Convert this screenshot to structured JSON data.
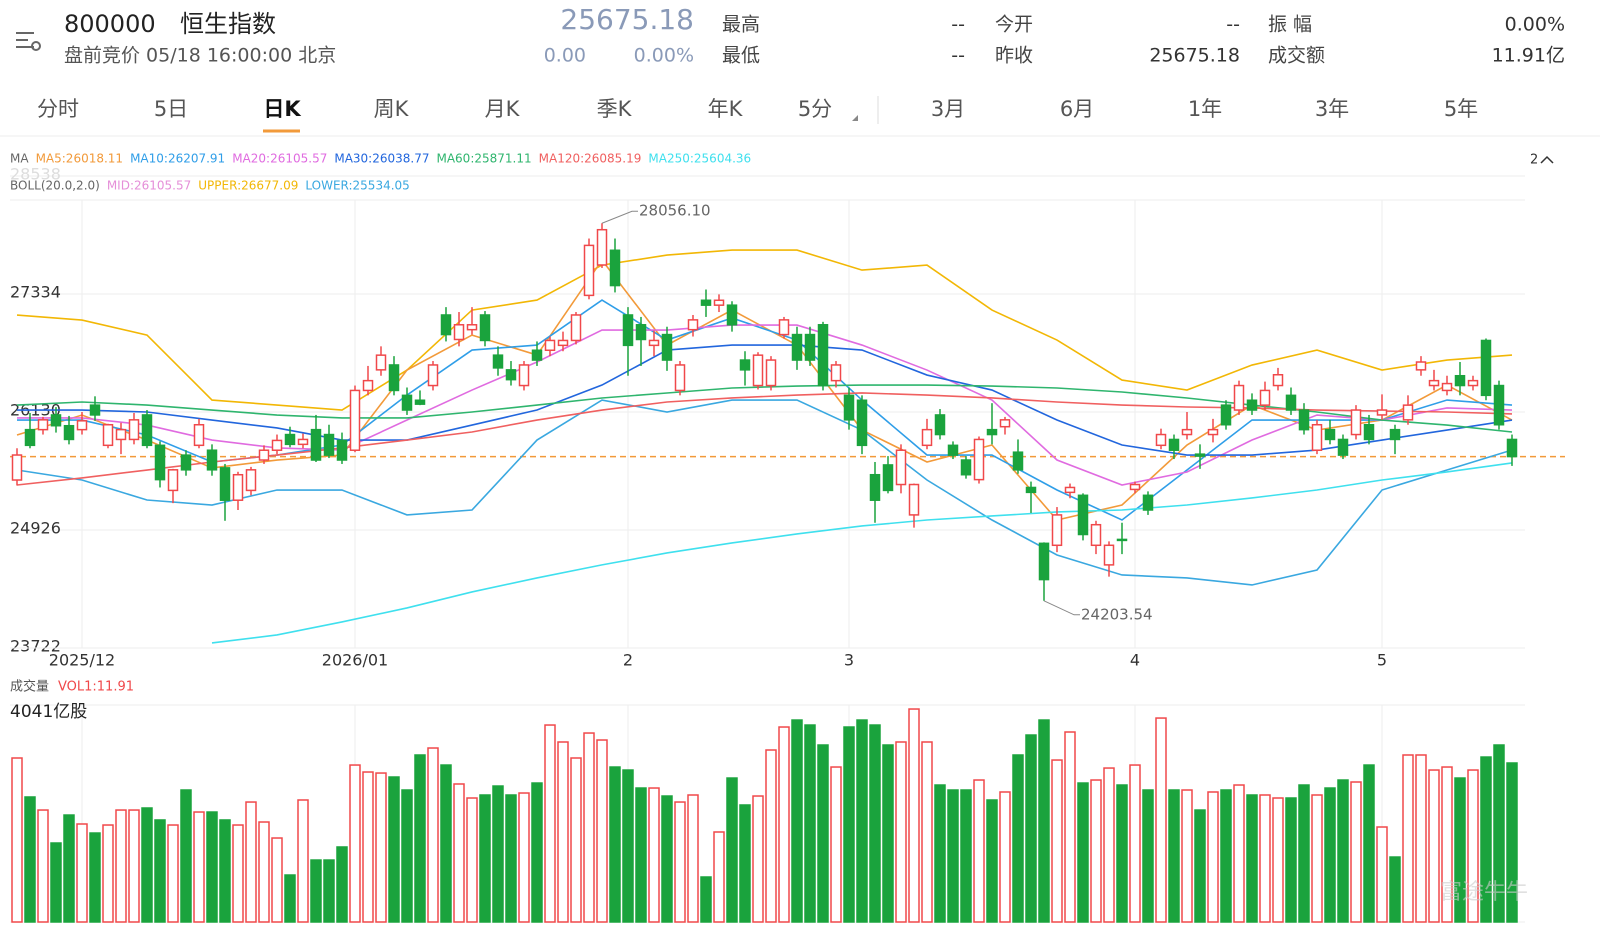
{
  "header": {
    "code": "800000",
    "name": "恒生指数",
    "status": "盘前竞价 05/18 16:00:00 北京",
    "price": "25675.18",
    "change": "0.00",
    "change_pct": "0.00%",
    "stats": [
      [
        "最高",
        "--"
      ],
      [
        "最低",
        "--"
      ],
      [
        "今开",
        "--"
      ],
      [
        "昨收",
        "25675.18"
      ],
      [
        "振 幅",
        "0.00%"
      ],
      [
        "成交额",
        "11.91亿"
      ]
    ]
  },
  "tabs": [
    "分时",
    "5日",
    "日K",
    "周K",
    "月K",
    "季K",
    "年K",
    "5分",
    "3月",
    "6月",
    "1年",
    "3年",
    "5年"
  ],
  "watermark": "富途牛牛",
  "chart_data": {
    "type": "candlestick",
    "ma_title": "MA",
    "boll_title": "BOLL(20.0,2.0)",
    "legend_toggle": "2",
    "ylim": [
      23722,
      28538
    ],
    "yticks": [
      23722,
      24926,
      26130,
      27334,
      28538
    ],
    "xticks": [
      {
        "value": 5,
        "label": "2025/12"
      },
      {
        "value": 26,
        "label": "2026/01"
      },
      {
        "value": 47,
        "label": "2"
      },
      {
        "value": 64,
        "label": "3"
      },
      {
        "value": 86,
        "label": "4"
      },
      {
        "value": 105,
        "label": "5"
      }
    ],
    "up_color": "#f0484a",
    "down_color": "#1aa33d",
    "last_price": 25675.18,
    "last_color": "#f29a3a",
    "high_label": "28056.10",
    "low_label": "24203.54",
    "candles": [
      [
        25436,
        25760,
        25380,
        25691
      ],
      [
        25950,
        26120,
        25760,
        25790
      ],
      [
        25950,
        26080,
        25900,
        26050
      ],
      [
        26100,
        26180,
        25920,
        25990
      ],
      [
        25990,
        26090,
        25800,
        25850
      ],
      [
        25950,
        26130,
        25900,
        26040
      ],
      [
        26200,
        26290,
        26040,
        26100
      ],
      [
        25790,
        26010,
        25760,
        26000
      ],
      [
        25850,
        26020,
        25700,
        25950
      ],
      [
        25850,
        26120,
        25800,
        26050
      ],
      [
        26100,
        26150,
        25760,
        25790
      ],
      [
        25790,
        25830,
        25360,
        25440
      ],
      [
        25330,
        25550,
        25200,
        25540
      ],
      [
        25690,
        25740,
        25480,
        25540
      ],
      [
        25790,
        26060,
        25760,
        26000
      ],
      [
        25740,
        25800,
        25480,
        25540
      ],
      [
        25560,
        25600,
        25020,
        25230
      ],
      [
        25230,
        25520,
        25130,
        25490
      ],
      [
        25330,
        25570,
        25280,
        25540
      ],
      [
        25640,
        25790,
        25600,
        25740
      ],
      [
        25740,
        25900,
        25700,
        25840
      ],
      [
        25900,
        25980,
        25770,
        25800
      ],
      [
        25800,
        25910,
        25760,
        25850
      ],
      [
        25950,
        26100,
        25620,
        25640
      ],
      [
        25900,
        26000,
        25660,
        25690
      ],
      [
        25840,
        25920,
        25600,
        25640
      ],
      [
        25740,
        26400,
        25720,
        26350
      ],
      [
        26350,
        26600,
        26300,
        26450
      ],
      [
        26560,
        26800,
        26500,
        26710
      ],
      [
        26610,
        26700,
        26300,
        26350
      ],
      [
        26300,
        26380,
        26100,
        26150
      ],
      [
        26250,
        26350,
        26200,
        26210
      ],
      [
        26400,
        26650,
        26350,
        26610
      ],
      [
        27120,
        27200,
        26850,
        26920
      ],
      [
        26870,
        27150,
        26800,
        27020
      ],
      [
        26970,
        27200,
        26920,
        27020
      ],
      [
        27120,
        27160,
        26800,
        26860
      ],
      [
        26710,
        26800,
        26500,
        26580
      ],
      [
        26560,
        26650,
        26400,
        26460
      ],
      [
        26400,
        26650,
        26350,
        26610
      ],
      [
        26760,
        26850,
        26600,
        26660
      ],
      [
        26760,
        26900,
        26700,
        26860
      ],
      [
        26810,
        26950,
        26750,
        26860
      ],
      [
        26860,
        27150,
        26820,
        27120
      ],
      [
        27320,
        27900,
        27280,
        27830
      ],
      [
        27630,
        28056.1,
        27600,
        27990
      ],
      [
        27780,
        27900,
        27350,
        27420
      ],
      [
        27120,
        27200,
        26500,
        26810
      ],
      [
        27020,
        27100,
        26600,
        26870
      ],
      [
        26810,
        26960,
        26700,
        26860
      ],
      [
        26920,
        27000,
        26550,
        26660
      ],
      [
        26350,
        26650,
        26300,
        26610
      ],
      [
        26970,
        27120,
        26900,
        27070
      ],
      [
        27270,
        27380,
        27100,
        27220
      ],
      [
        27220,
        27330,
        27150,
        27270
      ],
      [
        27220,
        27260,
        26950,
        27020
      ],
      [
        26660,
        26750,
        26400,
        26560
      ],
      [
        26400,
        26740,
        26360,
        26710
      ],
      [
        26400,
        26700,
        26350,
        26660
      ],
      [
        26920,
        27100,
        26880,
        27070
      ],
      [
        26920,
        27000,
        26560,
        26660
      ],
      [
        26920,
        27000,
        26600,
        26660
      ],
      [
        27020,
        27050,
        26350,
        26400
      ],
      [
        26450,
        26650,
        26380,
        26610
      ],
      [
        26300,
        26380,
        25950,
        26050
      ],
      [
        26250,
        26300,
        25700,
        25790
      ],
      [
        25490,
        25620,
        25000,
        25230
      ],
      [
        25590,
        25680,
        25300,
        25330
      ],
      [
        25390,
        25800,
        25300,
        25740
      ],
      [
        25080,
        25400,
        24950,
        25390
      ],
      [
        25790,
        26060,
        25750,
        25950
      ],
      [
        26100,
        26160,
        25850,
        25900
      ],
      [
        25790,
        25830,
        25650,
        25690
      ],
      [
        25640,
        25680,
        25450,
        25490
      ],
      [
        25440,
        25880,
        25400,
        25850
      ],
      [
        25950,
        26220,
        25800,
        25900
      ],
      [
        25980,
        26080,
        25900,
        26050
      ],
      [
        25720,
        25850,
        25500,
        25540
      ],
      [
        25360,
        25420,
        25100,
        25310
      ],
      [
        24790,
        24800,
        24203.54,
        24420
      ],
      [
        24770,
        25160,
        24700,
        25080
      ],
      [
        25310,
        25400,
        25250,
        25360
      ],
      [
        25280,
        25300,
        24820,
        24880
      ],
      [
        24770,
        25020,
        24680,
        24980
      ],
      [
        24570,
        24810,
        24450,
        24770
      ],
      [
        24830,
        25000,
        24680,
        24820
      ],
      [
        25340,
        25420,
        25300,
        25390
      ],
      [
        25280,
        25320,
        25080,
        25130
      ],
      [
        25790,
        25960,
        25750,
        25900
      ],
      [
        25850,
        25900,
        25650,
        25740
      ],
      [
        25900,
        26130,
        25850,
        25950
      ],
      [
        25700,
        25800,
        25550,
        25680
      ],
      [
        25900,
        26060,
        25820,
        25950
      ],
      [
        26200,
        26250,
        25950,
        26000
      ],
      [
        26150,
        26450,
        26100,
        26400
      ],
      [
        26250,
        26320,
        26100,
        26150
      ],
      [
        26200,
        26440,
        26150,
        26350
      ],
      [
        26400,
        26580,
        26350,
        26510
      ],
      [
        26300,
        26380,
        26100,
        26150
      ],
      [
        26150,
        26220,
        25900,
        25950
      ],
      [
        25740,
        26050,
        25700,
        26000
      ],
      [
        25950,
        26050,
        25800,
        25850
      ],
      [
        25850,
        25900,
        25650,
        25690
      ],
      [
        25900,
        26200,
        25850,
        26150
      ],
      [
        26000,
        26100,
        25800,
        25850
      ],
      [
        26100,
        26310,
        26050,
        26150
      ],
      [
        25950,
        26000,
        25700,
        25850
      ],
      [
        26050,
        26300,
        26000,
        26200
      ],
      [
        26560,
        26700,
        26500,
        26640
      ],
      [
        26400,
        26560,
        26350,
        26450
      ],
      [
        26350,
        26500,
        26300,
        26420
      ],
      [
        26500,
        26640,
        26300,
        26400
      ],
      [
        26400,
        26500,
        26350,
        26450
      ],
      [
        26860,
        26880,
        26250,
        26300
      ],
      [
        26400,
        26450,
        25950,
        26000
      ],
      [
        25850,
        25900,
        25580,
        25675.18
      ]
    ],
    "ma_x": [
      0,
      5,
      10,
      15,
      20,
      25,
      30,
      35,
      40,
      45,
      50,
      55,
      60,
      65,
      70,
      75,
      80,
      85,
      90,
      95,
      100,
      105,
      110,
      115
    ],
    "series": [
      {
        "name": "MA5:26018.11",
        "color": "#f29a3a",
        "values": [
          25895,
          26099,
          25844,
          25559,
          25640,
          25691,
          26558,
          26915,
          26711,
          27680,
          26813,
          27170,
          26813,
          25946,
          25620,
          25793,
          25028,
          25181,
          25793,
          26201,
          25946,
          26048,
          26405,
          26048
        ]
      },
      {
        "name": "MA10:26207.91",
        "color": "#2f9ee8",
        "values": [
          26048,
          26048,
          25895,
          25620,
          25691,
          25793,
          26303,
          26762,
          26813,
          27272,
          26864,
          27089,
          26864,
          26252,
          25691,
          25691,
          25334,
          25028,
          25538,
          26048,
          26048,
          26048,
          26252,
          26201
        ]
      },
      {
        "name": "MA20:26105.57",
        "color": "#e06be0",
        "values": [
          26069,
          26069,
          25997,
          25844,
          25763,
          25742,
          26048,
          26354,
          26640,
          26966,
          26966,
          27017,
          27017,
          26813,
          26558,
          26252,
          25640,
          25385,
          25518,
          25844,
          26099,
          26048,
          26171,
          26150
        ]
      },
      {
        "name": "MA30:26038.77",
        "color": "#2266dd",
        "values": [
          26150,
          26150,
          26130,
          26048,
          25967,
          25844,
          25844,
          25997,
          26150,
          26405,
          26762,
          26813,
          26813,
          26762,
          26507,
          26354,
          26048,
          25793,
          25691,
          25691,
          25742,
          25844,
          25946,
          26048
        ]
      },
      {
        "name": "MA60:25871.11",
        "color": "#2fb56e",
        "values": [
          26201,
          26232,
          26201,
          26150,
          26099,
          26069,
          26069,
          26130,
          26201,
          26273,
          26324,
          26375,
          26395,
          26405,
          26405,
          26395,
          26375,
          26334,
          26273,
          26201,
          26130,
          26048,
          25997,
          25926
        ]
      },
      {
        "name": "MA120:26085.19",
        "color": "#f06060",
        "values": [
          25385,
          25457,
          25538,
          25620,
          25691,
          25763,
          25844,
          25926,
          26048,
          26150,
          26232,
          26273,
          26303,
          26324,
          26303,
          26273,
          26232,
          26201,
          26181,
          26171,
          26150,
          26140,
          26130,
          26110
        ]
      },
      {
        "name": "MA250:25604.36",
        "color": "#3fe0ee",
        "values": [
          null,
          null,
          null,
          23774,
          23855,
          23988,
          24131,
          24294,
          24437,
          24570,
          24692,
          24794,
          24886,
          24967,
          25028,
          25069,
          25110,
          25130,
          25181,
          25253,
          25334,
          25436,
          25518,
          25610
        ]
      }
    ],
    "boll": [
      {
        "name": "MID:26105.57",
        "color": "#e58fd8"
      },
      {
        "name": "UPPER:26677.09",
        "color": "#f2b705",
        "values": [
          27119,
          27068,
          26915,
          26252,
          26201,
          26150,
          26558,
          27170,
          27272,
          27629,
          27731,
          27782,
          27782,
          27578,
          27629,
          27170,
          26864,
          26456,
          26354,
          26609,
          26762,
          26558,
          26660,
          26711
        ]
      },
      {
        "name": "LOWER:25534.05",
        "color": "#3aa8e0",
        "values": [
          25538,
          25436,
          25232,
          25181,
          25334,
          25334,
          25080,
          25130,
          25844,
          26252,
          26130,
          26252,
          26252,
          25946,
          25436,
          25028,
          24671,
          24467,
          24437,
          24365,
          24518,
          25334,
          25538,
          25742
        ]
      }
    ],
    "volume_title": "成交量",
    "volume_label": "VOL1:11.91",
    "volume_ylim": [
      0,
      4041
    ],
    "volume_yticks": [
      {
        "value": 4041,
        "label": "4041亿股"
      }
    ],
    "volumes": [
      3054,
      2328,
      2085,
      1471,
      1992,
      1825,
      1657,
      1806,
      2085,
      2085,
      2123,
      1900,
      1806,
      2458,
      2048,
      2048,
      1900,
      1806,
      2234,
      1862,
      1564,
      875,
      2272,
      1154,
      1154,
      1397,
      2923,
      2793,
      2774,
      2700,
      2458,
      3110,
      3240,
      2923,
      2570,
      2309,
      2365,
      2532,
      2365,
      2402,
      2588,
      3668,
      3352,
      3054,
      3519,
      3389,
      2886,
      2830,
      2495,
      2495,
      2346,
      2234,
      2365,
      838,
      1676,
      2681,
      2179,
      2346,
      3203,
      3631,
      3761,
      3668,
      3296,
      2886,
      3631,
      3761,
      3668,
      3296,
      3352,
      3966,
      3352,
      2551,
      2458,
      2458,
      2644,
      2272,
      2421,
      3110,
      3482,
      3761,
      3016,
      3538,
      2588,
      2644,
      2867,
      2551,
      2923,
      2458,
      3798,
      2458,
      2458,
      2085,
      2421,
      2458,
      2551,
      2365,
      2365,
      2309,
      2309,
      2551,
      2365,
      2495,
      2644,
      2607,
      2923,
      1769,
      1210,
      3110,
      3110,
      2830,
      2886,
      2681,
      2830,
      3072,
      3296,
      2961
    ]
  }
}
